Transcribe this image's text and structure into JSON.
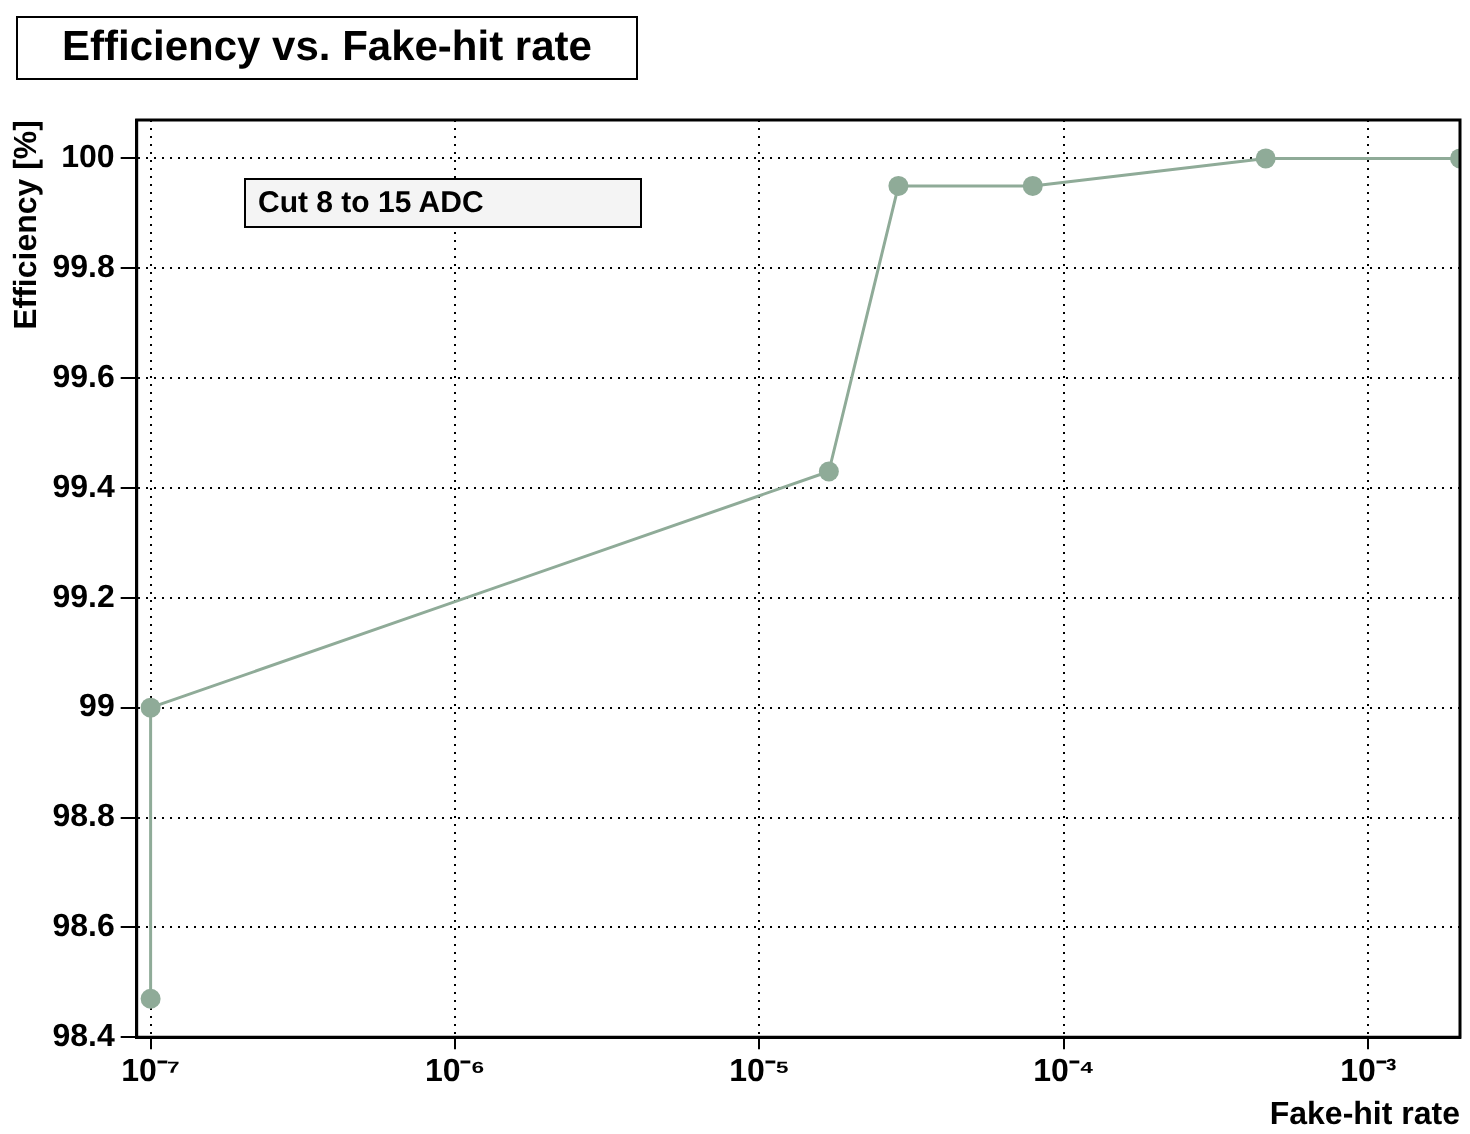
{
  "chart_data": {
    "type": "line",
    "title": "Efficiency vs. Fake-hit rate",
    "xlabel": "Fake-hit rate",
    "ylabel": "Efficiency [%]",
    "annotations": [
      "Cut 8 to 15 ADC"
    ],
    "x": [
      1e-07,
      1e-07,
      1.69e-05,
      2.86e-05,
      7.9e-05,
      0.00046,
      0.002
    ],
    "series": [
      {
        "color": "#8fab98",
        "values": [
          98.47,
          99.0,
          99.43,
          99.95,
          99.95,
          100.0,
          100.0
        ]
      }
    ],
    "log": "x",
    "xlim": [
      9e-08,
      0.002
    ],
    "xticks": [
      {
        "value": 1e-07,
        "label": "10⁻⁷"
      },
      {
        "value": 1e-06,
        "label": "10⁻⁶"
      },
      {
        "value": 1e-05,
        "label": "10⁻⁵"
      },
      {
        "value": 0.0001,
        "label": "10⁻⁴"
      },
      {
        "value": 0.001,
        "label": "10⁻³"
      }
    ],
    "ylim": [
      98.4,
      100.07
    ],
    "yticks": [
      98.4,
      98.6,
      98.8,
      99,
      99.2,
      99.4,
      99.6,
      99.8,
      100
    ],
    "grid": true,
    "marker": "circle",
    "line_style": "solid",
    "legend": false
  }
}
